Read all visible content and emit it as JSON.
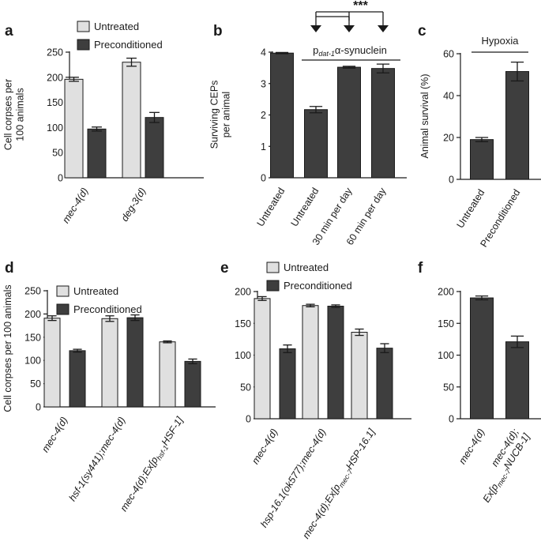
{
  "figure": {
    "colors": {
      "untreated": "#e0e0e0",
      "preconditioned": "#3e3e3e",
      "dark": "#3e3e3e",
      "axis": "#1a1a1a"
    }
  },
  "chart_data": [
    {
      "panel": "a",
      "type": "bar",
      "ylabel": "Cell corpses per 100 animals",
      "ylim": [
        0,
        250
      ],
      "yticks": [
        0,
        50,
        100,
        150,
        200,
        250
      ],
      "categories": [
        "mec-4(d)",
        "deg-3(d)"
      ],
      "legend": [
        "Untreated",
        "Preconditioned"
      ],
      "series": [
        {
          "name": "Untreated",
          "values": [
            196,
            230
          ],
          "errors": [
            4,
            8
          ]
        },
        {
          "name": "Preconditioned",
          "values": [
            97,
            120
          ],
          "errors": [
            4,
            10
          ]
        }
      ]
    },
    {
      "panel": "b",
      "type": "bar",
      "ylabel": "Surviving CEPs per animal",
      "ylim": [
        0,
        4
      ],
      "yticks": [
        0,
        1,
        2,
        3,
        4
      ],
      "categories": [
        "Untreated",
        "Untreated",
        "30 min per day",
        "60 min per day"
      ],
      "series": [
        {
          "name": "CEPs",
          "values": [
            3.97,
            2.17,
            3.52,
            3.48
          ],
          "errors": [
            0.02,
            0.1,
            0.03,
            0.14
          ]
        }
      ],
      "bracket_label": {
        "base": "p",
        "sub": "dat-1",
        "rest": "α-synuclein"
      },
      "significance": "***"
    },
    {
      "panel": "c",
      "type": "bar",
      "ylabel": "Animal survival (%)",
      "ylim": [
        0,
        60
      ],
      "yticks": [
        0,
        20,
        40,
        60
      ],
      "categories": [
        "Untreated",
        "Preconditioned"
      ],
      "series": [
        {
          "name": "Survival",
          "values": [
            19,
            51.5
          ],
          "errors": [
            1,
            4.5
          ]
        }
      ],
      "annotation": "Hypoxia"
    },
    {
      "panel": "d",
      "type": "bar",
      "ylabel": "Cell corpses per 100 animals",
      "ylim": [
        0,
        250
      ],
      "yticks": [
        0,
        50,
        100,
        150,
        200,
        250
      ],
      "categories": [
        "mec-4(d)",
        "hsf-1(sy441);mec-4(d)",
        "mec-4(d);Ex[phsf-1HSF-1]"
      ],
      "category_parts": [
        {
          "main": "mec-4(d)"
        },
        {
          "main": "hsf-1(sy441);mec-4(d)"
        },
        {
          "main": "mec-4(d);Ex[p",
          "sub": "hsf-1",
          "rest": "HSF-1]"
        }
      ],
      "legend": [
        "Untreated",
        "Preconditioned"
      ],
      "series": [
        {
          "name": "Untreated",
          "values": [
            191,
            190,
            140
          ],
          "errors": [
            5,
            6,
            2
          ]
        },
        {
          "name": "Preconditioned",
          "values": [
            121,
            192,
            98
          ],
          "errors": [
            3,
            6,
            5
          ]
        }
      ]
    },
    {
      "panel": "e",
      "type": "bar",
      "ylabel": "",
      "ylim": [
        0,
        200
      ],
      "yticks": [
        0,
        50,
        100,
        150,
        200
      ],
      "categories": [
        "mec-4(d)",
        "hsp-16.1(ok577);mec-4(d)",
        "mec-4(d);Ex[pmec-7HSP-16.1]"
      ],
      "category_parts": [
        {
          "main": "mec-4(d)"
        },
        {
          "main": "hsp-16.1(ok577);mec-4(d)"
        },
        {
          "main": "mec-4(d);Ex[p",
          "sub": "mec-7",
          "rest": "HSP-16.1]"
        }
      ],
      "legend": [
        "Untreated",
        "Preconditioned"
      ],
      "series": [
        {
          "name": "Untreated",
          "values": [
            189,
            178,
            136
          ],
          "errors": [
            3,
            2,
            5
          ]
        },
        {
          "name": "Preconditioned",
          "values": [
            110,
            177,
            111
          ],
          "errors": [
            6,
            2,
            7
          ]
        }
      ]
    },
    {
      "panel": "f",
      "type": "bar",
      "ylabel": "",
      "ylim": [
        0,
        200
      ],
      "yticks": [
        0,
        50,
        100,
        150,
        200
      ],
      "categories": [
        "mec-4(d)",
        "mec-4(d); Ex[pmec-7NUCB-1]"
      ],
      "category_parts": [
        {
          "main": "mec-4(d)"
        },
        {
          "line1": "mec-4(d);",
          "main": "Ex[p",
          "sub": "mec-7",
          "rest": "NUCB-1]"
        }
      ],
      "series": [
        {
          "name": "Preconditioned",
          "values": [
            190,
            121
          ],
          "errors": [
            3,
            9
          ]
        }
      ]
    }
  ]
}
